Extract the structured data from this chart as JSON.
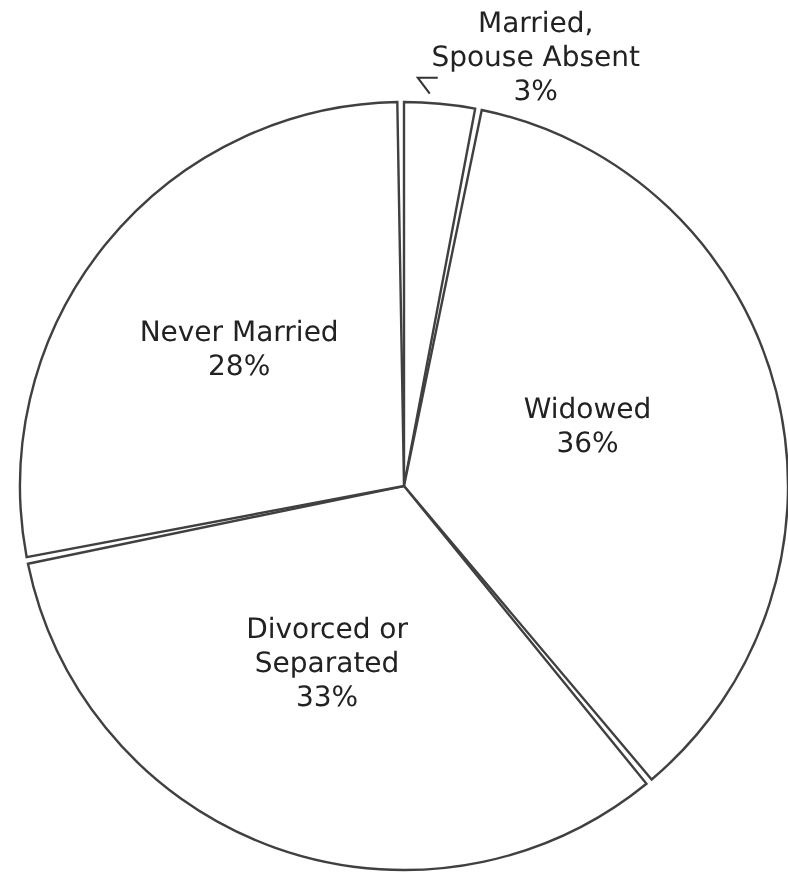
{
  "chart_data": {
    "type": "pie",
    "categories": [
      "Married, Spouse Absent",
      "Widowed",
      "Divorced or Separated",
      "Never Married"
    ],
    "values": [
      3,
      36,
      33,
      28
    ],
    "value_labels": [
      "3%",
      "36%",
      "33%",
      "28%"
    ],
    "colors": [
      "#ffffff",
      "#ffffff",
      "#ffffff",
      "#ffffff"
    ],
    "legend": false
  }
}
